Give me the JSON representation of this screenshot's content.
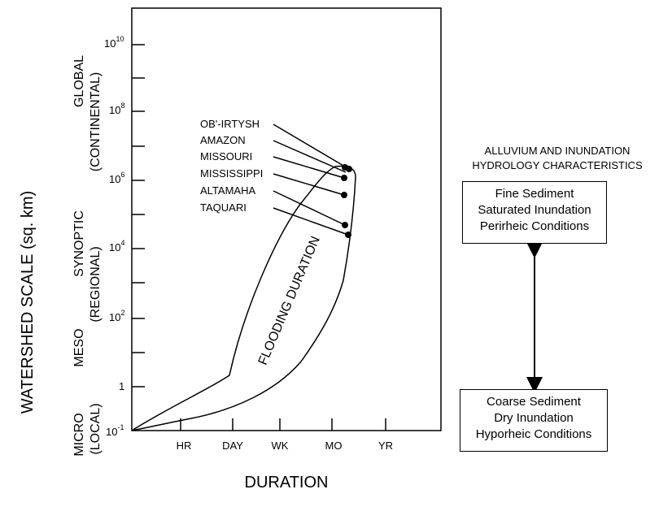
{
  "axes": {
    "y_label": "WATERSHED SCALE (sq. km)",
    "x_label": "DURATION",
    "y_ticks": [
      {
        "base": "10",
        "exp": "10"
      },
      {
        "base": "10",
        "exp": "8"
      },
      {
        "base": "10",
        "exp": "6"
      },
      {
        "base": "10",
        "exp": "4"
      },
      {
        "base": "10",
        "exp": "2"
      },
      {
        "base": "1",
        "exp": ""
      },
      {
        "base": "10",
        "exp": "-1"
      }
    ],
    "x_ticks": [
      "HR",
      "DAY",
      "WK",
      "MO",
      "YR"
    ]
  },
  "scales": [
    {
      "name": "GLOBAL",
      "sub": "(CONTINENTAL)"
    },
    {
      "name": "SYNOPTIC",
      "sub": "(REGIONAL)"
    },
    {
      "name": "MESO",
      "sub": ""
    },
    {
      "name": "MICRO",
      "sub": "(LOCAL)"
    }
  ],
  "rivers": [
    "OB'-IRTYSH",
    "AMAZON",
    "MISSOURI",
    "MISSISSIPPI",
    "ALTAMAHA",
    "TAQUARI"
  ],
  "envelope_label": "FLOODING DURATION",
  "side": {
    "heading_line1": "ALLUVIUM AND INUNDATION",
    "heading_line2": "HYDROLOGY CHARACTERISTICS",
    "top_box": [
      "Fine Sediment",
      "Saturated Inundation",
      "Perirheic Conditions"
    ],
    "bottom_box": [
      "Coarse Sediment",
      "Dry Inundation",
      "Hyporheic Conditions"
    ]
  }
}
